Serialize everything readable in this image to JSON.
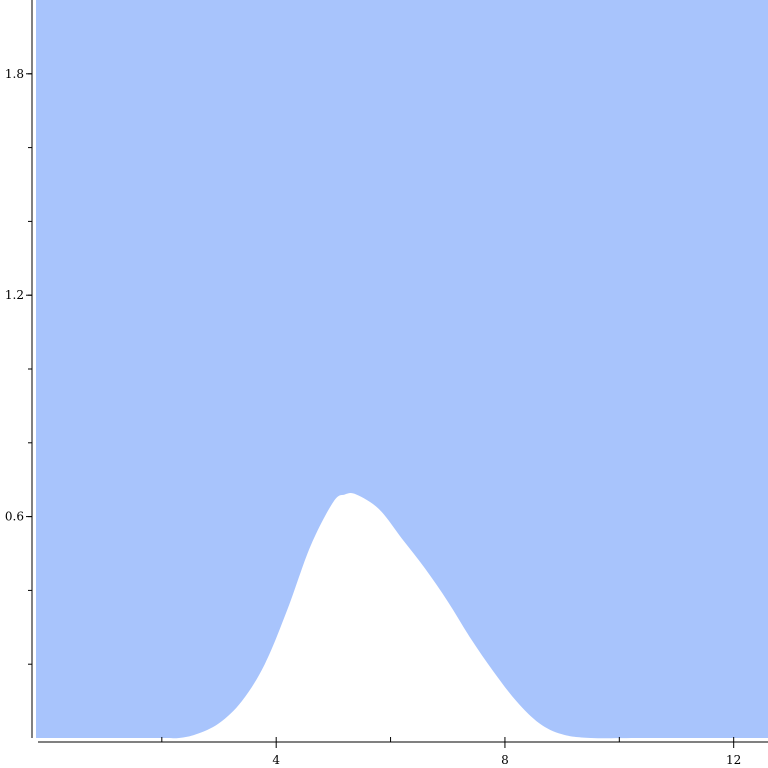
{
  "chart_data": {
    "type": "area",
    "title": "",
    "xlabel": "",
    "ylabel": "",
    "xlim": [
      -0.2,
      12.6
    ],
    "ylim": [
      0,
      2.0
    ],
    "x_ticks": [
      4,
      8,
      12
    ],
    "x_tick_labels": [
      "4",
      "8",
      "12"
    ],
    "x_minor_ticks": [
      2,
      4,
      6,
      8,
      10,
      12
    ],
    "y_ticks": [
      0.6,
      1.2,
      1.8
    ],
    "y_tick_labels": [
      "0.6",
      "1.2",
      "1.8"
    ],
    "y_minor_ticks": [
      0.2,
      0.4,
      0.6,
      0.8,
      1.0,
      1.2,
      1.4,
      1.6,
      1.8
    ],
    "fill_color": "#a8c4fc",
    "series": [
      {
        "x": [
          -0.2,
          1.0,
          2.0,
          2.3,
          2.6,
          3.0,
          3.4,
          3.8,
          4.2,
          4.6,
          5.0,
          5.2,
          5.4,
          5.8,
          6.2,
          6.6,
          7.0,
          7.4,
          7.8,
          8.2,
          8.6,
          9.0,
          9.5,
          10.5,
          12.6
        ],
        "lower": [
          0.0,
          0.0,
          0.0,
          0.0,
          0.01,
          0.04,
          0.1,
          0.2,
          0.35,
          0.52,
          0.64,
          0.66,
          0.66,
          0.62,
          0.54,
          0.46,
          0.37,
          0.27,
          0.18,
          0.1,
          0.04,
          0.01,
          0.0,
          0.0,
          0.0
        ],
        "upper": [
          2.0,
          2.0,
          2.0,
          2.0,
          2.0,
          2.0,
          2.0,
          2.0,
          2.0,
          2.0,
          2.0,
          2.0,
          2.0,
          2.0,
          2.0,
          2.0,
          2.0,
          2.0,
          2.0,
          2.0,
          2.0,
          2.0,
          2.0,
          2.0,
          2.0
        ]
      }
    ]
  }
}
